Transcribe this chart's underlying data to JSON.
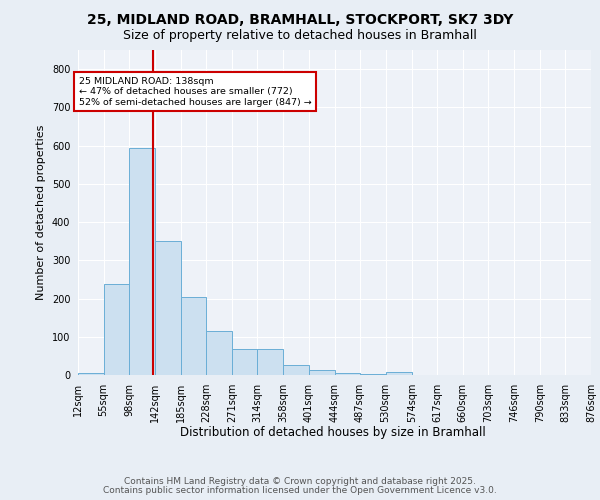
{
  "title1": "25, MIDLAND ROAD, BRAMHALL, STOCKPORT, SK7 3DY",
  "title2": "Size of property relative to detached houses in Bramhall",
  "xlabel": "Distribution of detached houses by size in Bramhall",
  "ylabel": "Number of detached properties",
  "footer1": "Contains HM Land Registry data © Crown copyright and database right 2025.",
  "footer2": "Contains public sector information licensed under the Open Government Licence v3.0.",
  "annotation_line1": "25 MIDLAND ROAD: 138sqm",
  "annotation_line2": "← 47% of detached houses are smaller (772)",
  "annotation_line3": "52% of semi-detached houses are larger (847) →",
  "bar_edges": [
    12,
    55,
    98,
    142,
    185,
    228,
    271,
    314,
    358,
    401,
    444,
    487,
    530,
    574,
    617,
    660,
    703,
    746,
    790,
    833,
    876
  ],
  "bar_values": [
    5,
    238,
    595,
    350,
    205,
    115,
    68,
    68,
    25,
    12,
    5,
    2,
    8,
    0,
    0,
    0,
    0,
    0,
    0,
    0
  ],
  "bar_color": "#cce0f0",
  "bar_edge_color": "#6aaed6",
  "vline_x": 138,
  "vline_color": "#cc0000",
  "ylim": [
    0,
    850
  ],
  "yticks": [
    0,
    100,
    200,
    300,
    400,
    500,
    600,
    700,
    800
  ],
  "bg_color": "#e8eef5",
  "plot_bg_color": "#eef2f8",
  "grid_color": "#ffffff",
  "annotation_box_color": "#cc0000",
  "annotation_bg": "#ffffff",
  "title1_fontsize": 10,
  "title2_fontsize": 9,
  "footer_fontsize": 6.5,
  "ylabel_fontsize": 8,
  "xlabel_fontsize": 8.5,
  "tick_fontsize": 7
}
